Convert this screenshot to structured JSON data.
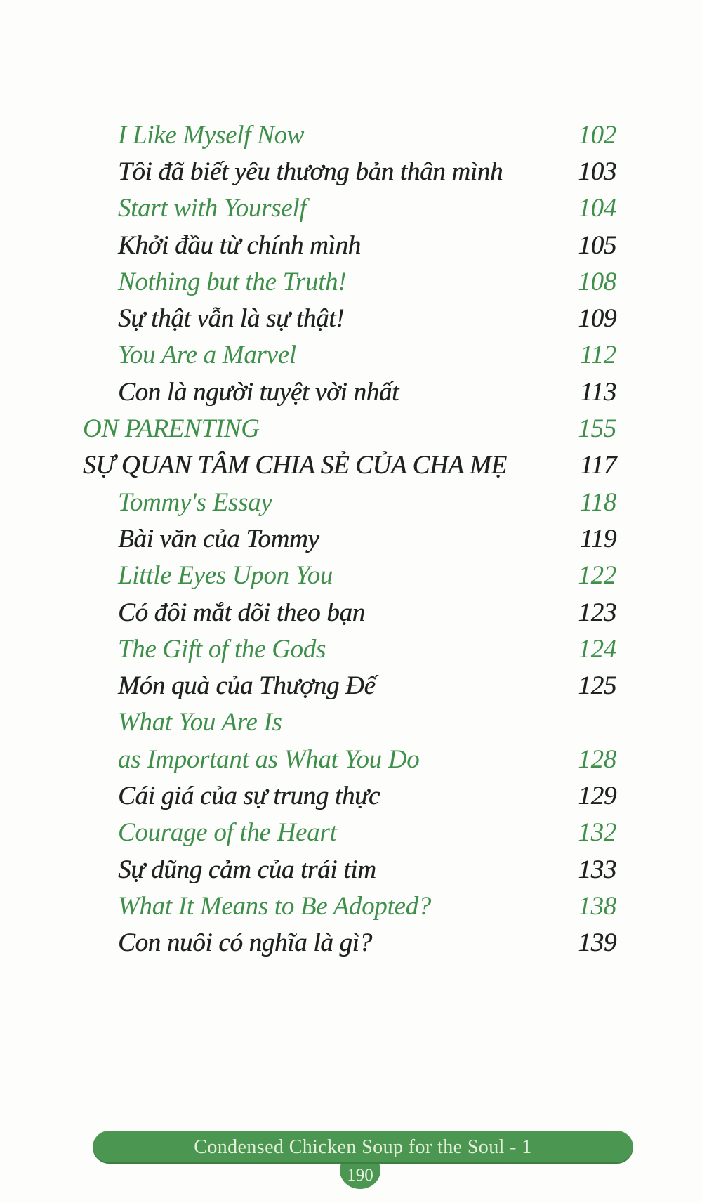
{
  "toc": {
    "entries": [
      {
        "label": "I Like Myself Now",
        "page": "102"
      },
      {
        "label": "Tôi đã biết yêu thương bản thân mình",
        "page": "103"
      },
      {
        "label": "Start with Yourself",
        "page": "104"
      },
      {
        "label": "Khởi đầu từ chính mình",
        "page": "105"
      },
      {
        "label": "Nothing but the Truth!",
        "page": "108"
      },
      {
        "label": "Sự thật vẫn là sự thật!",
        "page": "109"
      },
      {
        "label": "You Are a Marvel",
        "page": "112"
      },
      {
        "label": "Con là người tuyệt vời nhất",
        "page": "113"
      },
      {
        "label": "ON PARENTING",
        "page": "155"
      },
      {
        "label": "SỰ QUAN TÂM CHIA SẺ CỦA CHA MẸ",
        "page": "117"
      },
      {
        "label": "Tommy's Essay",
        "page": "118"
      },
      {
        "label": "Bài văn của Tommy",
        "page": "119"
      },
      {
        "label": "Little Eyes Upon You",
        "page": "122"
      },
      {
        "label": "Có đôi mắt dõi theo bạn",
        "page": "123"
      },
      {
        "label": "The Gift of the Gods",
        "page": "124"
      },
      {
        "label": "Món quà của Thượng Đế",
        "page": "125"
      },
      {
        "label": "What You Are Is",
        "page": ""
      },
      {
        "label": "as Important as What You Do",
        "page": "128"
      },
      {
        "label": "Cái giá của sự trung thực",
        "page": "129"
      },
      {
        "label": "Courage of the Heart",
        "page": "132"
      },
      {
        "label": "Sự dũng cảm của trái tim",
        "page": "133"
      },
      {
        "label": "What It Means to Be Adopted?",
        "page": "138"
      },
      {
        "label": "Con nuôi có nghĩa là gì?",
        "page": "139"
      }
    ]
  },
  "footer": {
    "book_title": "Condensed Chicken Soup for the Soul - 1",
    "page_number": "190"
  },
  "colors": {
    "title_green": "#3d8f4a",
    "text_dark": "#1e231f",
    "footer_green": "#4b9651",
    "footer_text": "#e4efdb",
    "paper": "#fdfdfb"
  }
}
